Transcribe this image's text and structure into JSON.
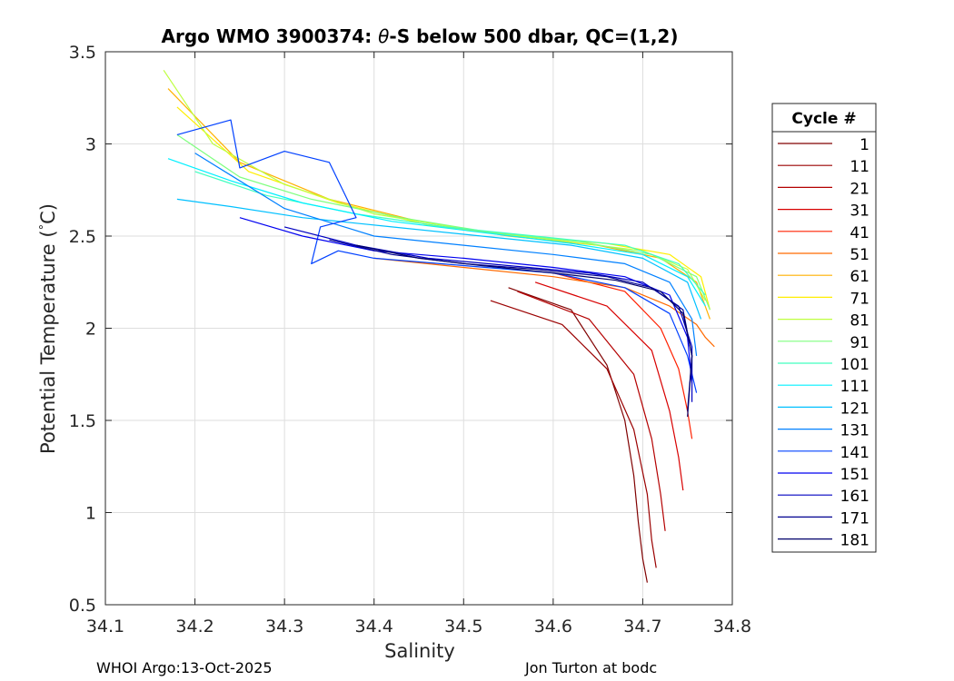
{
  "chart_data": {
    "type": "line",
    "title_prefix": "Argo WMO 3900374: ",
    "title_theta": "θ",
    "title_suffix": "-S below 500 dbar,  QC=(1,2)",
    "xlabel": "Salinity",
    "ylabel": "Potential Temperature (",
    "ylabel_degree": "°",
    "ylabel_unit": "C)",
    "xlim": [
      34.1,
      34.8
    ],
    "ylim": [
      0.5,
      3.5
    ],
    "xticks": [
      34.1,
      34.2,
      34.3,
      34.4,
      34.5,
      34.6,
      34.7,
      34.8
    ],
    "xtick_labels": [
      "34.1",
      "34.2",
      "34.3",
      "34.4",
      "34.5",
      "34.6",
      "34.7",
      "34.8"
    ],
    "yticks": [
      0.5,
      1,
      1.5,
      2,
      2.5,
      3,
      3.5
    ],
    "ytick_labels": [
      "0.5",
      "1",
      "1.5",
      "2",
      "2.5",
      "3",
      "3.5"
    ],
    "grid": true,
    "legend": {
      "title": "Cycle #",
      "placement": "right-outside",
      "entries": [
        {
          "label": "1",
          "color": "#800000"
        },
        {
          "label": "11",
          "color": "#9a0000"
        },
        {
          "label": "21",
          "color": "#b40000"
        },
        {
          "label": "31",
          "color": "#d80000"
        },
        {
          "label": "41",
          "color": "#ff2000"
        },
        {
          "label": "51",
          "color": "#ff6a00"
        },
        {
          "label": "61",
          "color": "#ffb000"
        },
        {
          "label": "71",
          "color": "#ffee00"
        },
        {
          "label": "81",
          "color": "#bfff40"
        },
        {
          "label": "91",
          "color": "#7fff7f"
        },
        {
          "label": "101",
          "color": "#40ffbf"
        },
        {
          "label": "111",
          "color": "#00f0ff"
        },
        {
          "label": "121",
          "color": "#00c0ff"
        },
        {
          "label": "131",
          "color": "#0080ff"
        },
        {
          "label": "141",
          "color": "#0040ff"
        },
        {
          "label": "151",
          "color": "#0000f0"
        },
        {
          "label": "161",
          "color": "#0000c0"
        },
        {
          "label": "171",
          "color": "#000090"
        },
        {
          "label": "181",
          "color": "#00006a"
        }
      ]
    },
    "series": [
      {
        "name": "1",
        "color": "#800000",
        "x": [
          34.55,
          34.62,
          34.66,
          34.68,
          34.69,
          34.695,
          34.7,
          34.705
        ],
        "y": [
          2.22,
          2.1,
          1.8,
          1.5,
          1.2,
          0.95,
          0.75,
          0.62
        ]
      },
      {
        "name": "11",
        "color": "#9a0000",
        "x": [
          34.53,
          34.61,
          34.66,
          34.69,
          34.705,
          34.71,
          34.715
        ],
        "y": [
          2.15,
          2.02,
          1.78,
          1.45,
          1.1,
          0.85,
          0.7
        ]
      },
      {
        "name": "21",
        "color": "#b40000",
        "x": [
          34.56,
          34.64,
          34.69,
          34.71,
          34.72,
          34.725
        ],
        "y": [
          2.2,
          2.05,
          1.75,
          1.4,
          1.1,
          0.9
        ]
      },
      {
        "name": "31",
        "color": "#d80000",
        "x": [
          34.58,
          34.66,
          34.71,
          34.73,
          34.74,
          34.745
        ],
        "y": [
          2.25,
          2.12,
          1.88,
          1.55,
          1.3,
          1.12
        ]
      },
      {
        "name": "41",
        "color": "#ff2000",
        "x": [
          34.6,
          34.68,
          34.72,
          34.74,
          34.75,
          34.755
        ],
        "y": [
          2.3,
          2.2,
          2.0,
          1.78,
          1.55,
          1.4
        ]
      },
      {
        "name": "51",
        "color": "#ff6a00",
        "x": [
          34.4,
          34.5,
          34.6,
          34.68,
          34.73,
          34.76,
          34.77,
          34.78
        ],
        "y": [
          2.38,
          2.33,
          2.28,
          2.22,
          2.12,
          2.02,
          1.95,
          1.9
        ]
      },
      {
        "name": "61",
        "color": "#ffb000",
        "x": [
          34.17,
          34.25,
          34.35,
          34.45,
          34.55,
          34.65,
          34.72,
          34.76,
          34.775
        ],
        "y": [
          3.3,
          2.9,
          2.7,
          2.58,
          2.5,
          2.45,
          2.38,
          2.25,
          2.05
        ]
      },
      {
        "name": "71",
        "color": "#ffee00",
        "x": [
          34.18,
          34.26,
          34.36,
          34.46,
          34.56,
          34.66,
          34.73,
          34.765,
          34.775
        ],
        "y": [
          3.2,
          2.85,
          2.68,
          2.56,
          2.5,
          2.46,
          2.4,
          2.28,
          2.1
        ]
      },
      {
        "name": "81",
        "color": "#bfff40",
        "x": [
          34.165,
          34.22,
          34.3,
          34.4,
          34.5,
          34.6,
          34.7,
          34.75,
          34.77
        ],
        "y": [
          3.4,
          3.0,
          2.78,
          2.62,
          2.54,
          2.48,
          2.42,
          2.32,
          2.15
        ]
      },
      {
        "name": "91",
        "color": "#7fff7f",
        "x": [
          34.18,
          34.25,
          34.33,
          34.43,
          34.53,
          34.63,
          34.71,
          34.76,
          34.775
        ],
        "y": [
          3.05,
          2.82,
          2.7,
          2.6,
          2.52,
          2.47,
          2.4,
          2.28,
          2.1
        ]
      },
      {
        "name": "101",
        "color": "#40ffbf",
        "x": [
          34.2,
          34.28,
          34.38,
          34.48,
          34.58,
          34.68,
          34.74,
          34.77
        ],
        "y": [
          2.85,
          2.72,
          2.62,
          2.55,
          2.5,
          2.45,
          2.35,
          2.18
        ]
      },
      {
        "name": "111",
        "color": "#00f0ff",
        "x": [
          34.17,
          34.24,
          34.32,
          34.42,
          34.52,
          34.62,
          34.7,
          34.75,
          34.77
        ],
        "y": [
          2.92,
          2.8,
          2.68,
          2.58,
          2.52,
          2.46,
          2.4,
          2.28,
          2.12
        ]
      },
      {
        "name": "121",
        "color": "#00c0ff",
        "x": [
          34.18,
          34.24,
          34.32,
          34.42,
          34.52,
          34.62,
          34.7,
          34.75,
          34.765
        ],
        "y": [
          2.7,
          2.66,
          2.6,
          2.55,
          2.5,
          2.45,
          2.38,
          2.25,
          2.05
        ]
      },
      {
        "name": "131",
        "color": "#0080ff",
        "x": [
          34.2,
          34.3,
          34.4,
          34.5,
          34.6,
          34.68,
          34.73,
          34.755,
          34.76
        ],
        "y": [
          2.95,
          2.65,
          2.5,
          2.45,
          2.4,
          2.35,
          2.25,
          2.05,
          1.85
        ]
      },
      {
        "name": "141",
        "color": "#0040ff",
        "x": [
          34.18,
          34.24,
          34.25,
          34.3,
          34.35,
          34.38,
          34.34,
          34.33,
          34.36,
          34.4,
          34.5,
          34.6,
          34.68,
          34.73,
          34.75,
          34.76
        ],
        "y": [
          3.05,
          3.13,
          2.87,
          2.96,
          2.9,
          2.6,
          2.55,
          2.35,
          2.42,
          2.38,
          2.34,
          2.3,
          2.22,
          2.08,
          1.85,
          1.65
        ]
      },
      {
        "name": "151",
        "color": "#0000f0",
        "x": [
          34.25,
          34.32,
          34.4,
          34.5,
          34.6,
          34.68,
          34.73,
          34.75,
          34.755
        ],
        "y": [
          2.6,
          2.5,
          2.42,
          2.38,
          2.33,
          2.28,
          2.18,
          1.95,
          1.7
        ]
      },
      {
        "name": "161",
        "color": "#0000c0",
        "x": [
          34.3,
          34.38,
          34.46,
          34.55,
          34.64,
          34.7,
          34.74,
          34.755,
          34.755
        ],
        "y": [
          2.55,
          2.45,
          2.38,
          2.34,
          2.3,
          2.25,
          2.12,
          1.9,
          1.6
        ]
      },
      {
        "name": "171",
        "color": "#000090",
        "x": [
          34.35,
          34.42,
          34.5,
          34.58,
          34.66,
          34.71,
          34.745,
          34.755,
          34.75
        ],
        "y": [
          2.48,
          2.4,
          2.35,
          2.32,
          2.28,
          2.22,
          2.1,
          1.85,
          1.55
        ]
      },
      {
        "name": "181",
        "color": "#00006a",
        "x": [
          34.38,
          34.45,
          34.52,
          34.6,
          34.67,
          34.72,
          34.745,
          34.755,
          34.75
        ],
        "y": [
          2.45,
          2.38,
          2.34,
          2.3,
          2.26,
          2.2,
          2.08,
          1.85,
          1.52
        ]
      }
    ]
  },
  "footer": {
    "left": "WHOI Argo:13-Oct-2025",
    "right": "Jon Turton at bodc"
  }
}
